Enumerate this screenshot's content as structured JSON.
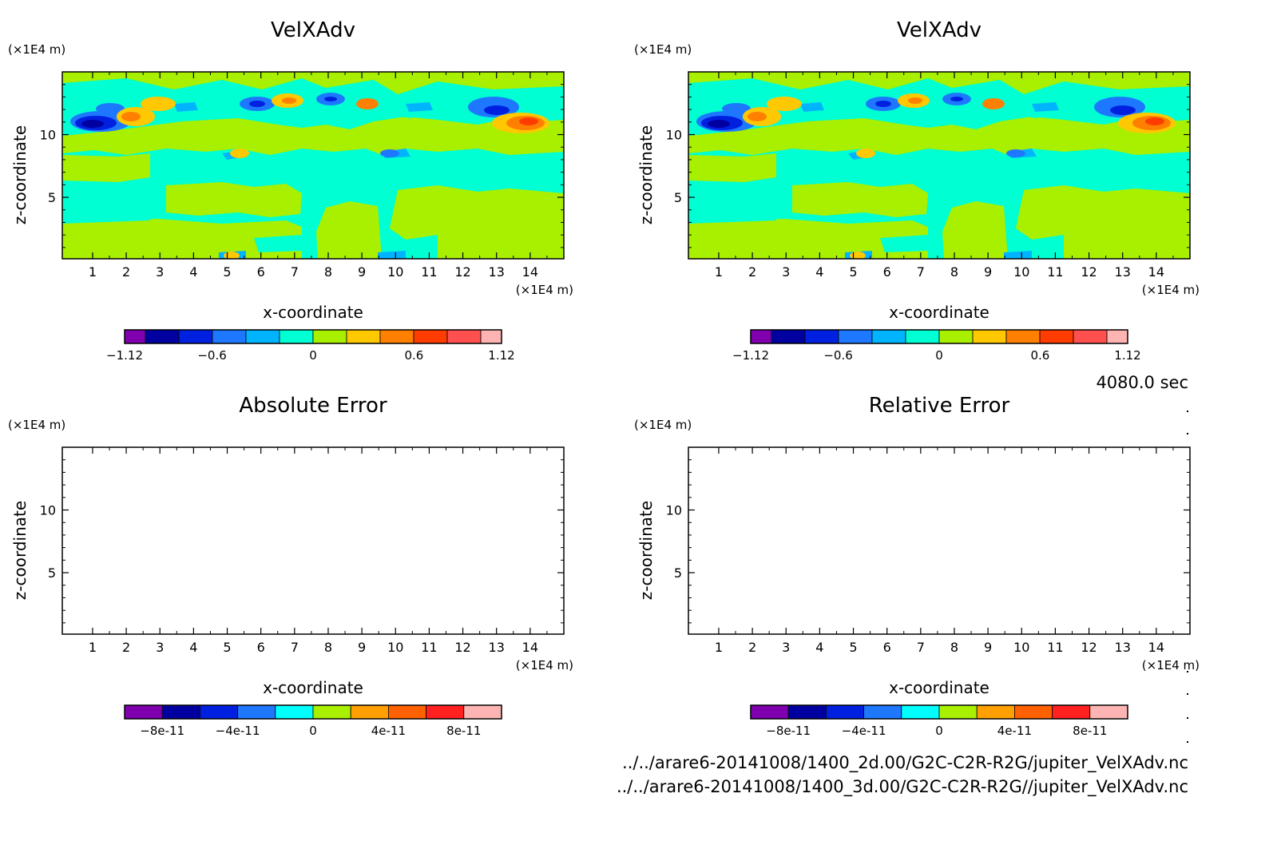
{
  "time_label": "4080.0 sec",
  "footer": {
    "path_2d": "../../arare6-20141008/1400_2d.00/G2C-C2R-R2G/jupiter_VelXAdv.nc",
    "path_3d": "../../arare6-20141008/1400_3d.00/G2C-C2R-R2G//jupiter_VelXAdv.nc"
  },
  "chart_data": [
    {
      "type": "heatmap",
      "title": "VelXAdv",
      "xlabel": "x-coordinate",
      "ylabel": "z-coordinate",
      "x_unit": "(×1E4 m)",
      "y_unit": "(×1E4 m)",
      "xlim": [
        0.1,
        15
      ],
      "ylim": [
        0.1,
        15
      ],
      "xticks": [
        "1",
        "2",
        "3",
        "4",
        "5",
        "6",
        "7",
        "8",
        "9",
        "10",
        "11",
        "12",
        "13",
        "14"
      ],
      "yticks": [
        "5",
        "10"
      ],
      "colorbar": {
        "range": [
          -1.12,
          1.12
        ],
        "labels": [
          "-1.12",
          "-0.6",
          "0",
          "0.6",
          "1.12"
        ],
        "colors": [
          "#8000b0",
          "#0000a0",
          "#0020e0",
          "#1e78ff",
          "#00b4ff",
          "#00ffd2",
          "#a8f000",
          "#ffc800",
          "#ff8000",
          "#ff3c00",
          "#ff5050",
          "#ffb4b4"
        ]
      },
      "field_summary": "mostly near-zero values (-0.2 to 0.2) with strong dipoles near z=10-12 at x=1-3, 6-7, 8-9, 12-14"
    },
    {
      "type": "heatmap",
      "title": "VelXAdv",
      "xlabel": "x-coordinate",
      "ylabel": "z-coordinate",
      "x_unit": "(×1E4 m)",
      "y_unit": "(×1E4 m)",
      "xlim": [
        0.1,
        15
      ],
      "ylim": [
        0.1,
        15
      ],
      "xticks": [
        "1",
        "2",
        "3",
        "4",
        "5",
        "6",
        "7",
        "8",
        "9",
        "10",
        "11",
        "12",
        "13",
        "14"
      ],
      "yticks": [
        "5",
        "10"
      ],
      "colorbar": {
        "range": [
          -1.12,
          1.12
        ],
        "labels": [
          "-1.12",
          "-0.6",
          "0",
          "0.6",
          "1.12"
        ],
        "colors": [
          "#8000b0",
          "#0000a0",
          "#0020e0",
          "#1e78ff",
          "#00b4ff",
          "#00ffd2",
          "#a8f000",
          "#ffc800",
          "#ff8000",
          "#ff3c00",
          "#ff5050",
          "#ffb4b4"
        ]
      },
      "field_summary": "identical to the first panel"
    },
    {
      "type": "heatmap",
      "title": "Absolute Error",
      "xlabel": "x-coordinate",
      "ylabel": "z-coordinate",
      "x_unit": "(×1E4 m)",
      "y_unit": "(×1E4 m)",
      "xlim": [
        0.1,
        15
      ],
      "ylim": [
        0.1,
        15
      ],
      "xticks": [
        "1",
        "2",
        "3",
        "4",
        "5",
        "6",
        "7",
        "8",
        "9",
        "10",
        "11",
        "12",
        "13",
        "14"
      ],
      "yticks": [
        "5",
        "10"
      ],
      "colorbar": {
        "range": [
          -1e-10,
          1e-10
        ],
        "labels": [
          "-8e-11",
          "-4e-11",
          "0",
          "4e-11",
          "8e-11"
        ],
        "colors": [
          "#8000b0",
          "#0000a0",
          "#0020e0",
          "#1e78ff",
          "#00ffff",
          "#a8f000",
          "#ffa000",
          "#ff6000",
          "#ff2020",
          "#ffb4b4"
        ]
      },
      "field_summary": "blank (no contours drawn)"
    },
    {
      "type": "heatmap",
      "title": "Relative Error",
      "xlabel": "x-coordinate",
      "ylabel": "z-coordinate",
      "x_unit": "(×1E4 m)",
      "y_unit": "(×1E4 m)",
      "xlim": [
        0.1,
        15
      ],
      "ylim": [
        0.1,
        15
      ],
      "xticks": [
        "1",
        "2",
        "3",
        "4",
        "5",
        "6",
        "7",
        "8",
        "9",
        "10",
        "11",
        "12",
        "13",
        "14"
      ],
      "yticks": [
        "5",
        "10"
      ],
      "colorbar": {
        "range": [
          -1e-10,
          1e-10
        ],
        "labels": [
          "-8e-11",
          "-4e-11",
          "0",
          "4e-11",
          "8e-11"
        ],
        "colors": [
          "#8000b0",
          "#0000a0",
          "#0020e0",
          "#1e78ff",
          "#00ffff",
          "#a8f000",
          "#ffa000",
          "#ff6000",
          "#ff2020",
          "#ffb4b4"
        ]
      },
      "field_summary": "blank (no contours drawn)"
    }
  ]
}
